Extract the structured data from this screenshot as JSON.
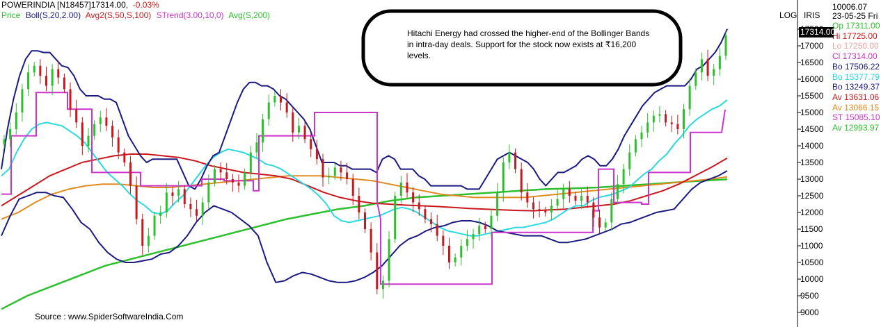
{
  "header": {
    "symbol": "POWERINDIA [N18457]",
    "last": "17314.00,",
    "change": "-0.03%"
  },
  "indicators": [
    {
      "label": "Price",
      "color": "#2cc02c"
    },
    {
      "label": "Boll(S,20,2.00)",
      "color": "#1a1a80"
    },
    {
      "label": "Avg2(S,50,S,100)",
      "color": "#c8181e"
    },
    {
      "label": "STrend(3.00,10,0)",
      "color": "#cc33cc"
    },
    {
      "label": "Avg(S,200)",
      "color": "#2cc02c"
    }
  ],
  "flags": {
    "log": "LOG",
    "iris": "IRIS"
  },
  "right_panel": {
    "top_value": "10006.07",
    "date": "23-05-25 Fri",
    "price_tag": "17314.00",
    "readouts": [
      {
        "text": "Op 17311.00",
        "color": "#2cc02c"
      },
      {
        "text": "Hi 17725.00",
        "color": "#d01818"
      },
      {
        "text": "Lo 17250.00",
        "color": "#f0a0a0"
      },
      {
        "text": "Cl 17314.00",
        "color": "#cc33cc"
      },
      {
        "text": "Bo 17506.22",
        "color": "#1a1a80"
      },
      {
        "text": "Bo 15377.79",
        "color": "#2ad8e0"
      },
      {
        "text": "Bo 13249.37",
        "color": "#1a1a80"
      },
      {
        "text": "Av 13631.06",
        "color": "#c8181e"
      },
      {
        "text": "Av 13066.15",
        "color": "#e08a20"
      },
      {
        "text": "ST 15085.10",
        "color": "#cc33cc"
      },
      {
        "text": "Av 12993.97",
        "color": "#2cc02c"
      }
    ]
  },
  "annotation": "Hitachi Energy had crossed the higher-end of the Bollinger Bands in intra-day deals. Support for the stock now exists at ₹16,200 levels.",
  "source": "Source : www.SpiderSoftwareIndia.Com",
  "chart_data": {
    "type": "line",
    "ylim": [
      8800,
      17750
    ],
    "yticks": [
      "9000",
      "9500",
      "10000",
      "10500",
      "11000",
      "11500",
      "12000",
      "12500",
      "13000",
      "13500",
      "14000",
      "14500",
      "15000",
      "15500",
      "16000",
      "16500",
      "17000",
      "17500"
    ],
    "colors": {
      "up": "#2cc02c",
      "down": "#c8181e",
      "bb_outer": "#1a1a80",
      "bb_mid": "#2ad8e0",
      "avg_red": "#c8181e",
      "avg_orange": "#e08a20",
      "avg_green": "#2cc02c",
      "strend": "#cc33cc"
    },
    "price": [
      14200,
      14500,
      15000,
      15700,
      16200,
      16400,
      16100,
      15800,
      16300,
      16050,
      15700,
      15100,
      14700,
      14000,
      14300,
      14650,
      14850,
      14600,
      14250,
      13800,
      13500,
      12800,
      11800,
      11000,
      11300,
      11900,
      12000,
      12600,
      12500,
      12700,
      12250,
      12100,
      11900,
      12300,
      12900,
      13300,
      13200,
      13000,
      12900,
      12800,
      13200,
      13800,
      14100,
      14800,
      15300,
      15500,
      15300,
      15000,
      14400,
      14600,
      14200,
      13900,
      13600,
      13050,
      13100,
      13350,
      13200,
      13000,
      12500,
      12000,
      11500,
      10800,
      9700,
      9950,
      11200,
      12500,
      12900,
      12600,
      12300,
      12100,
      11800,
      11650,
      11300,
      11000,
      10500,
      10650,
      11000,
      11200,
      11350,
      11600,
      11500,
      11900,
      12600,
      13500,
      13800,
      13300,
      12600,
      12300,
      12100,
      12050,
      12000,
      12200,
      12400,
      12700,
      12500,
      12350,
      12500,
      12300,
      11850,
      11550,
      11700,
      12400,
      12850,
      13300,
      13800,
      14200,
      14400,
      14700,
      14900,
      14950,
      14700,
      14650,
      14500,
      15100,
      15800,
      16200,
      16600,
      16100,
      16300,
      16700,
      17314
    ],
    "bb_upper": [
      13300,
      14500,
      15400,
      16100,
      16600,
      16850,
      16850,
      16800,
      16800,
      16600,
      16400,
      16350,
      16100,
      15700,
      15500,
      15500,
      15500,
      15400,
      15400,
      15300,
      14800,
      14300,
      14000,
      13700,
      13500,
      13600,
      13600,
      13600,
      13600,
      13600,
      13200,
      12800,
      12700,
      13000,
      13400,
      13700,
      13800,
      14300,
      14800,
      15300,
      15700,
      15900,
      15900,
      15800,
      15800,
      15700,
      15500,
      15400,
      15200,
      15000,
      14800,
      14500,
      14000,
      13500,
      13500,
      13500,
      13400,
      13400,
      13300,
      13300,
      13300,
      13300,
      13200,
      13600,
      13700,
      13600,
      13300,
      13300,
      13300,
      13100,
      13000,
      12800,
      12800,
      12800,
      12800,
      12800,
      12800,
      12700,
      12700,
      12700,
      13000,
      13300,
      13600,
      13700,
      13800,
      13700,
      13600,
      13500,
      13300,
      13000,
      12800,
      13000,
      13200,
      13200,
      13300,
      13400,
      13600,
      13700,
      13600,
      13400,
      13400,
      13600,
      13900,
      14300,
      14600,
      14900,
      15200,
      15400,
      15600,
      15700,
      15800,
      15800,
      15800,
      15800,
      16000,
      16300,
      16400,
      16600,
      16800,
      17100,
      17506
    ],
    "bb_mid": [
      13100,
      13300,
      13800,
      14200,
      14500,
      14650,
      14700,
      14650,
      14600,
      14450,
      14300,
      14100,
      13800,
      13500,
      13200,
      13000,
      12800,
      12550,
      12350,
      12200,
      12000,
      11950,
      12050,
      12300,
      12500,
      12800,
      13100,
      13400,
      13650,
      13800,
      13900,
      13850,
      13800,
      13700,
      13600,
      13450,
      13400,
      13300,
      13150,
      13000,
      12850,
      12700,
      12500,
      12250,
      11900,
      11750,
      11700,
      11750,
      11800,
      11850,
      11900,
      12000,
      12100,
      12150,
      12100,
      12000,
      11850,
      11700,
      11550,
      11450,
      11400,
      11350,
      11300,
      11300,
      11350,
      11400,
      11450,
      11500,
      11550,
      11550,
      11600,
      11650,
      11700,
      11800,
      11950,
      12100,
      12200,
      12200,
      12350,
      12450,
      12500,
      12550,
      12650,
      12750,
      12950,
      13150,
      13300,
      13550,
      13750,
      14050,
      14300,
      14600,
      14800,
      14950,
      15100,
      15200,
      15377
    ],
    "bb_lower": [
      11300,
      11900,
      12400,
      12500,
      12600,
      12600,
      12500,
      12450,
      12100,
      11700,
      11500,
      11100,
      10800,
      10600,
      10500,
      10500,
      10550,
      10600,
      10750,
      10800,
      11000,
      11300,
      11700,
      12000,
      12200,
      12100,
      12000,
      11800,
      11600,
      11300,
      10500,
      9900,
      9950,
      10100,
      10200,
      10150,
      10050,
      9950,
      9900,
      9900,
      9950,
      10050,
      10200,
      10400,
      10700,
      11000,
      11200,
      11300,
      11450,
      11550,
      11600,
      11700,
      11750,
      11750,
      11700,
      11600,
      11450,
      11400,
      11350,
      11300,
      11300,
      11300,
      11200,
      11100,
      11100,
      11150,
      11200,
      11300,
      11400,
      11500,
      11650,
      11700,
      11800,
      11900,
      12000,
      12050,
      12100,
      12400,
      12700,
      12900,
      13000,
      13100,
      13249
    ],
    "avg_red": [
      12200,
      12500,
      12800,
      13100,
      13300,
      13500,
      13600,
      13700,
      13750,
      13750,
      13700,
      13650,
      13550,
      13400,
      13300,
      13200,
      13150,
      13100,
      13000,
      12800,
      12600,
      12450,
      12350,
      12280,
      12250,
      12220,
      12200,
      12180,
      12150,
      12120,
      12100,
      12080,
      12060,
      12050,
      12080,
      12100,
      12150,
      12200,
      12250,
      12350,
      12500,
      12650,
      12850,
      13100,
      13350,
      13631
    ],
    "avg_orange": [
      11800,
      12000,
      12300,
      12550,
      12700,
      12800,
      12850,
      12850,
      12800,
      12750,
      12750,
      12800,
      12850,
      12900,
      12950,
      13000,
      13050,
      13100,
      13100,
      13100,
      13050,
      13000,
      12950,
      12850,
      12750,
      12650,
      12550,
      12500,
      12450,
      12450,
      12450,
      12450,
      12500,
      12550,
      12600,
      12650,
      12700,
      12750,
      12800,
      12850,
      12900,
      12950,
      13000,
      13066
    ],
    "avg_green": [
      9100,
      9500,
      9800,
      10100,
      10400,
      10600,
      10800,
      11000,
      11200,
      11400,
      11600,
      11800,
      11950,
      12100,
      12200,
      12350,
      12450,
      12500,
      12550,
      12600,
      12650,
      12700,
      12720,
      12750,
      12800,
      12850,
      12900,
      12950,
      12993
    ],
    "strend": [
      [
        0,
        12550
      ],
      [
        14,
        12550
      ],
      [
        14,
        14300
      ],
      [
        50,
        14300
      ],
      [
        50,
        15600
      ],
      [
        95,
        15600
      ],
      [
        95,
        15100
      ],
      [
        130,
        15100
      ],
      [
        130,
        13200
      ],
      [
        160,
        13200
      ],
      [
        160,
        13200
      ],
      [
        200,
        13200
      ],
      [
        200,
        12800
      ],
      [
        288,
        12800
      ],
      [
        288,
        13000
      ],
      [
        320,
        13000
      ],
      [
        320,
        12950
      ],
      [
        362,
        12950
      ],
      [
        362,
        12650
      ],
      [
        370,
        12650
      ],
      [
        370,
        14300
      ],
      [
        450,
        14300
      ],
      [
        450,
        15000
      ],
      [
        540,
        15000
      ],
      [
        540,
        12300
      ],
      [
        545,
        11800
      ],
      [
        545,
        9850
      ],
      [
        705,
        9850
      ],
      [
        705,
        11400
      ],
      [
        745,
        11400
      ],
      [
        745,
        11400
      ],
      [
        850,
        11400
      ],
      [
        850,
        12050
      ],
      [
        858,
        12050
      ],
      [
        858,
        13300
      ],
      [
        880,
        13300
      ],
      [
        880,
        12300
      ],
      [
        905,
        12300
      ],
      [
        905,
        12300
      ],
      [
        920,
        12300
      ],
      [
        920,
        12250
      ],
      [
        930,
        12250
      ],
      [
        930,
        13200
      ],
      [
        990,
        13200
      ],
      [
        990,
        14400
      ],
      [
        1035,
        14400
      ],
      [
        1040,
        15085
      ]
    ]
  }
}
